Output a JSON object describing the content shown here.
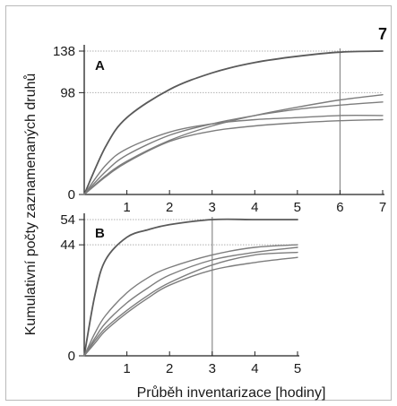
{
  "figure_number": "7",
  "ylabel": "Kumulativní počty zaznamenaných druhů",
  "xlabel": "Průběh inventarizace [hodiny]",
  "chart_data": [
    {
      "type": "line",
      "panel": "A",
      "xlim": [
        0,
        7
      ],
      "ylim": [
        0,
        138
      ],
      "x_ticks": [
        1,
        2,
        3,
        4,
        5,
        6,
        7
      ],
      "y_ticks": [
        0,
        98,
        138
      ],
      "reference_lines": {
        "x": [
          6
        ],
        "y": [
          98,
          138
        ]
      },
      "series": [
        {
          "x": [
            0,
            0.5,
            1,
            2,
            3,
            4,
            5,
            6,
            7
          ],
          "y": [
            0,
            46,
            74,
            101,
            117,
            127,
            133,
            137,
            138
          ]
        },
        {
          "x": [
            0,
            0.5,
            1,
            2,
            3,
            4,
            5,
            6,
            7
          ],
          "y": [
            0,
            18,
            32,
            52,
            66,
            76,
            84,
            91,
            96
          ]
        },
        {
          "x": [
            0,
            0.5,
            1,
            2,
            3,
            4,
            5,
            6,
            7
          ],
          "y": [
            0,
            22,
            38,
            57,
            68,
            76,
            82,
            86,
            89
          ]
        },
        {
          "x": [
            0,
            0.5,
            1,
            2,
            3,
            4,
            5,
            6,
            7
          ],
          "y": [
            0,
            28,
            44,
            60,
            68,
            72,
            74,
            76,
            76
          ]
        },
        {
          "x": [
            0,
            0.5,
            1,
            2,
            3,
            4,
            5,
            6,
            7
          ],
          "y": [
            0,
            17,
            31,
            51,
            61,
            66,
            69,
            71,
            72
          ]
        }
      ]
    },
    {
      "type": "line",
      "panel": "B",
      "xlim": [
        0,
        5
      ],
      "ylim": [
        0,
        54
      ],
      "x_ticks": [
        1,
        2,
        3,
        4,
        5
      ],
      "y_ticks": [
        0,
        44,
        54
      ],
      "reference_lines": {
        "x": [
          3
        ],
        "y": [
          44,
          54
        ]
      },
      "series": [
        {
          "x": [
            0,
            0.25,
            0.5,
            1,
            1.5,
            2,
            3,
            4,
            5
          ],
          "y": [
            0,
            24,
            38,
            47,
            50,
            52,
            54,
            54,
            54
          ]
        },
        {
          "x": [
            0,
            0.25,
            0.5,
            1,
            1.5,
            2,
            3,
            4,
            5
          ],
          "y": [
            0,
            9,
            16,
            25,
            31,
            35,
            40,
            43,
            44
          ]
        },
        {
          "x": [
            0,
            0.25,
            0.5,
            1,
            1.5,
            2,
            3,
            4,
            5
          ],
          "y": [
            0,
            7,
            13,
            21,
            27,
            32,
            38,
            41,
            43
          ]
        },
        {
          "x": [
            0,
            0.25,
            0.5,
            1,
            1.5,
            2,
            3,
            4,
            5
          ],
          "y": [
            0,
            6,
            11,
            18,
            24,
            29,
            36,
            40,
            41
          ]
        },
        {
          "x": [
            0,
            0.25,
            0.5,
            1,
            1.5,
            2,
            3,
            4,
            5
          ],
          "y": [
            0,
            5,
            10,
            17,
            23,
            28,
            34,
            37,
            39
          ]
        }
      ]
    }
  ]
}
